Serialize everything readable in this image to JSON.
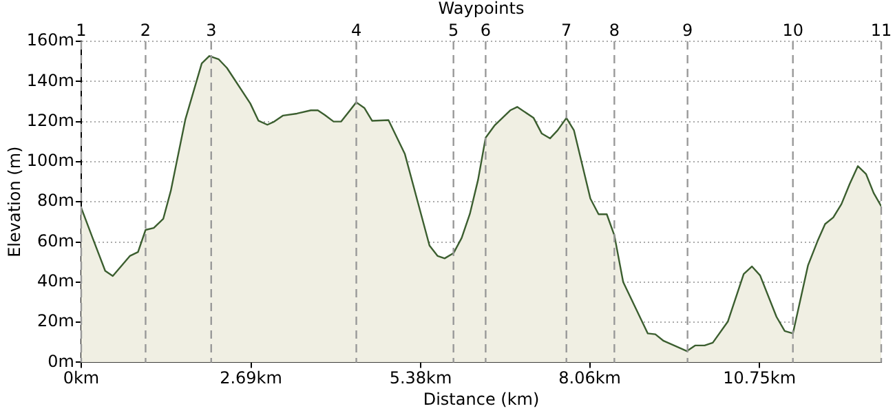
{
  "chart_data": {
    "type": "area",
    "xlabel": "Distance (km)",
    "ylabel": "Elevation (m)",
    "x": [
      0,
      0.18,
      0.38,
      0.5,
      0.77,
      0.9,
      1.02,
      1.15,
      1.3,
      1.42,
      1.65,
      1.91,
      2.03,
      2.18,
      2.31,
      2.68,
      2.81,
      2.95,
      3.06,
      3.2,
      3.42,
      3.64,
      3.75,
      3.86,
      4.0,
      4.12,
      4.36,
      4.49,
      4.61,
      4.87,
      5.13,
      5.52,
      5.65,
      5.76,
      5.9,
      6.03,
      6.16,
      6.29,
      6.41,
      6.55,
      6.8,
      6.91,
      7.17,
      7.3,
      7.43,
      7.55,
      7.69,
      7.81,
      8.07,
      8.2,
      8.33,
      8.45,
      8.59,
      8.98,
      9.1,
      9.23,
      9.6,
      9.73,
      9.88,
      10.01,
      10.25,
      10.5,
      10.63,
      10.76,
      11.02,
      11.15,
      11.28,
      11.52,
      11.67,
      11.79,
      11.92,
      12.05,
      12.18,
      12.31,
      12.44,
      12.56,
      12.68
    ],
    "series": [
      {
        "color": "#3b5e2f",
        "values": [
          77,
          62,
          45.6,
          43,
          53,
          55,
          66,
          67,
          71.5,
          85.5,
          121,
          149,
          152.7,
          151,
          146.7,
          129,
          120.4,
          118.4,
          120,
          123,
          124,
          125.6,
          125.6,
          123.3,
          120,
          120,
          129.6,
          126.7,
          120.4,
          120.7,
          103.8,
          58.2,
          53,
          51.8,
          54.4,
          62,
          74,
          91,
          112,
          118,
          125.6,
          127.3,
          121.8,
          114,
          111.6,
          115.6,
          121.8,
          115.6,
          81.6,
          73.8,
          73.8,
          63.3,
          40,
          14.4,
          14,
          10.7,
          5.6,
          8.4,
          8.4,
          9.8,
          20.4,
          44,
          47.8,
          43.3,
          22.7,
          15.6,
          14.4,
          48.4,
          60.4,
          68.9,
          72.2,
          78.9,
          88.9,
          97.8,
          93.8,
          84.4,
          77.8
        ]
      }
    ],
    "xlim": [
      0,
      12.68
    ],
    "xticks": [
      {
        "value": 0,
        "label": "0km"
      },
      {
        "value": 2.69,
        "label": "2.69km"
      },
      {
        "value": 5.38,
        "label": "5.38km"
      },
      {
        "value": 8.06,
        "label": "8.06km"
      },
      {
        "value": 10.75,
        "label": "10.75km"
      }
    ],
    "annotations": [
      "Waypoints",
      {
        "text": "1",
        "x": 0,
        "y": 160
      },
      {
        "text": "2",
        "x": 1.02,
        "y": 160
      },
      {
        "text": "3",
        "x": 2.06,
        "y": 160
      },
      {
        "text": "4",
        "x": 4.36,
        "y": 160
      },
      {
        "text": "5",
        "x": 5.9,
        "y": 160
      },
      {
        "text": "6",
        "x": 6.41,
        "y": 160
      },
      {
        "text": "7",
        "x": 7.69,
        "y": 160
      },
      {
        "text": "8",
        "x": 8.45,
        "y": 160
      },
      {
        "text": "9",
        "x": 9.61,
        "y": 160
      },
      {
        "text": "10",
        "x": 11.28,
        "y": 160
      },
      {
        "text": "11",
        "x": 12.68,
        "y": 160
      }
    ],
    "ref_lines": [
      {
        "axis": "x",
        "value": 0,
        "line_style": "dashed"
      },
      {
        "axis": "x",
        "value": 1.02,
        "line_style": "dashed"
      },
      {
        "axis": "x",
        "value": 2.06,
        "line_style": "dashed"
      },
      {
        "axis": "x",
        "value": 4.36,
        "line_style": "dashed"
      },
      {
        "axis": "x",
        "value": 5.9,
        "line_style": "dashed"
      },
      {
        "axis": "x",
        "value": 6.41,
        "line_style": "dashed"
      },
      {
        "axis": "x",
        "value": 7.69,
        "line_style": "dashed"
      },
      {
        "axis": "x",
        "value": 8.45,
        "line_style": "dashed"
      },
      {
        "axis": "x",
        "value": 9.61,
        "line_style": "dashed"
      },
      {
        "axis": "x",
        "value": 11.28,
        "line_style": "dashed"
      },
      {
        "axis": "x",
        "value": 12.68,
        "line_style": "dashed"
      }
    ],
    "ylim": [
      0,
      160
    ],
    "yticks": [
      {
        "value": 0,
        "label": "0m"
      },
      {
        "value": 20,
        "label": "20m"
      },
      {
        "value": 40,
        "label": "40m"
      },
      {
        "value": 60,
        "label": "60m"
      },
      {
        "value": 80,
        "label": "80m"
      },
      {
        "value": 100,
        "label": "100m"
      },
      {
        "value": 120,
        "label": "120m"
      },
      {
        "value": 140,
        "label": "140m"
      },
      {
        "value": 160,
        "label": "160m"
      }
    ],
    "grid": "y",
    "legend": false,
    "marker": "none"
  }
}
